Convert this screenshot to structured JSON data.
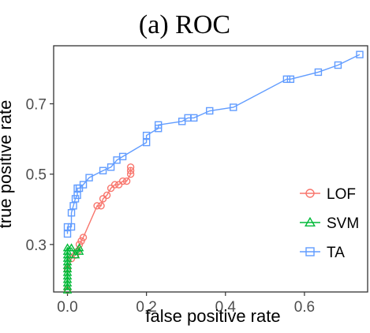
{
  "chart_data": {
    "type": "line",
    "title": "(a) ROC",
    "xlabel": "false positive rate",
    "ylabel": "true positive rate",
    "xlim": [
      -0.035,
      0.76
    ],
    "ylim": [
      0.165,
      0.865
    ],
    "xticks": [
      0.0,
      0.2,
      0.4,
      0.6
    ],
    "xtick_labels": [
      "0.0",
      "0.2",
      "0.4",
      "0.6"
    ],
    "yticks": [
      0.3,
      0.5,
      0.7
    ],
    "ytick_labels": [
      "0.3",
      "0.5",
      "0.7"
    ],
    "grid": false,
    "legend": "right",
    "series": [
      {
        "name": "LOF",
        "color": "#f8766d",
        "marker": "circle",
        "x": [
          0.0,
          0.0,
          0.01,
          0.02,
          0.025,
          0.03,
          0.035,
          0.04,
          0.075,
          0.085,
          0.09,
          0.1,
          0.11,
          0.12,
          0.13,
          0.14,
          0.15,
          0.16,
          0.16,
          0.16
        ],
        "y": [
          0.17,
          0.23,
          0.26,
          0.27,
          0.28,
          0.3,
          0.31,
          0.32,
          0.41,
          0.41,
          0.43,
          0.44,
          0.46,
          0.47,
          0.47,
          0.48,
          0.48,
          0.5,
          0.51,
          0.52
        ]
      },
      {
        "name": "SVM",
        "color": "#00ba38",
        "marker": "triangle",
        "x": [
          0.0,
          0.0,
          0.0,
          0.0,
          0.0,
          0.0,
          0.0,
          0.0,
          0.0,
          0.0,
          0.0,
          0.0,
          0.0,
          0.01,
          0.02,
          0.03,
          0.03
        ],
        "y": [
          0.17,
          0.18,
          0.19,
          0.2,
          0.21,
          0.22,
          0.23,
          0.24,
          0.25,
          0.26,
          0.27,
          0.28,
          0.29,
          0.29,
          0.27,
          0.28,
          0.29
        ]
      },
      {
        "name": "TA",
        "color": "#619cff",
        "marker": "square",
        "x": [
          0.0,
          0.0,
          0.01,
          0.01,
          0.015,
          0.02,
          0.025,
          0.025,
          0.03,
          0.04,
          0.055,
          0.09,
          0.11,
          0.125,
          0.14,
          0.2,
          0.2,
          0.23,
          0.23,
          0.29,
          0.305,
          0.32,
          0.36,
          0.42,
          0.555,
          0.565,
          0.635,
          0.685,
          0.74
        ],
        "y": [
          0.33,
          0.35,
          0.35,
          0.39,
          0.41,
          0.43,
          0.44,
          0.46,
          0.46,
          0.47,
          0.49,
          0.51,
          0.52,
          0.54,
          0.55,
          0.59,
          0.61,
          0.63,
          0.64,
          0.65,
          0.66,
          0.66,
          0.68,
          0.69,
          0.77,
          0.77,
          0.79,
          0.81,
          0.84
        ]
      }
    ]
  }
}
